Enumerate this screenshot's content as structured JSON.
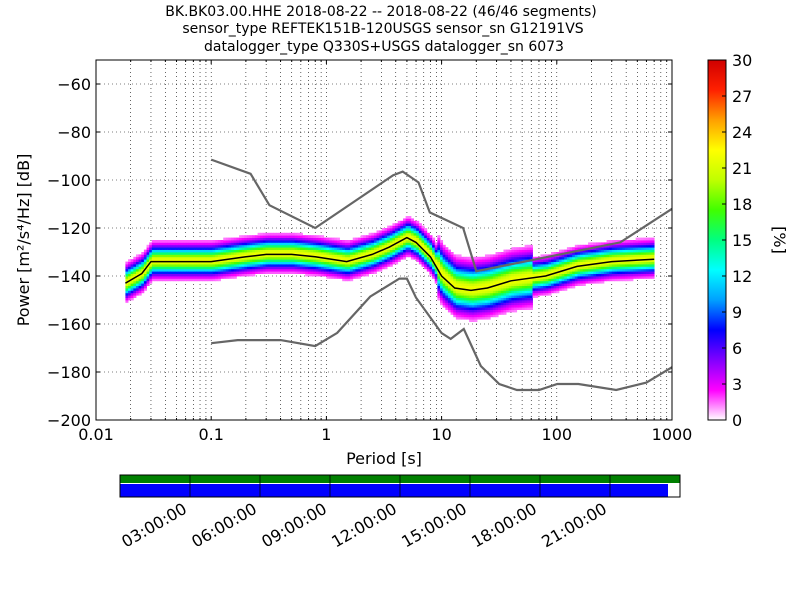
{
  "title_lines": [
    "BK.BK03.00.HHE   2018-08-22 -- 2018-08-22  (46/46 segments)",
    "sensor_type REFTEK151B-120USGS sensor_sn G12191VS",
    "datalogger_type Q330S+USGS datalogger_sn 6073"
  ],
  "chart_data": {
    "type": "heatmap",
    "xlabel": "Period [s]",
    "ylabel": "Power [m²/s⁴/Hz] [dB]",
    "xscale": "log",
    "xlim": [
      0.01,
      1000
    ],
    "ylim": [
      -200,
      -50
    ],
    "xticks": [
      0.01,
      0.1,
      1,
      10,
      100,
      1000
    ],
    "xtick_labels": [
      "0.01",
      "0.1",
      "1",
      "10",
      "100",
      "1000"
    ],
    "yticks": [
      -200,
      -180,
      -160,
      -140,
      -120,
      -100,
      -80,
      -60
    ],
    "ytick_labels": [
      "−200",
      "−180",
      "−160",
      "−140",
      "−120",
      "−100",
      "−80",
      "−60"
    ],
    "grid": true,
    "colorbar": {
      "label": "[%]",
      "range": [
        0,
        30
      ],
      "ticks": [
        0,
        3,
        6,
        9,
        12,
        15,
        18,
        21,
        24,
        27,
        30
      ],
      "tick_labels": [
        "0",
        "3",
        "6",
        "9",
        "12",
        "15",
        "18",
        "21",
        "24",
        "27",
        "30"
      ],
      "colormap": [
        "#ffffff",
        "#ff00ff",
        "#8000ff",
        "#0000ff",
        "#00a0ff",
        "#00ffff",
        "#00ff80",
        "#40ff00",
        "#c0ff00",
        "#ffff00",
        "#ffa000",
        "#ff2000",
        "#d00000"
      ]
    },
    "series": [
      {
        "role": "high-noise-model",
        "color": "#666666",
        "x": [
          0.1,
          0.22,
          0.32,
          0.8,
          3.8,
          4.6,
          6.3,
          7.9,
          15.4,
          20,
          354.8,
          1000
        ],
        "y": [
          -91.5,
          -97.4,
          -110.5,
          -120,
          -98,
          -96.5,
          -101,
          -113.5,
          -120,
          -138,
          -126,
          -112
        ]
      },
      {
        "role": "low-noise-model",
        "color": "#666666",
        "x": [
          0.1,
          0.17,
          0.4,
          0.8,
          1.24,
          2.4,
          4.3,
          5,
          6,
          10,
          12,
          15.6,
          21.9,
          31.6,
          45,
          70,
          101,
          154,
          328,
          600,
          1000
        ],
        "y": [
          -168,
          -166.7,
          -166.7,
          -169.2,
          -163.7,
          -148.6,
          -141.1,
          -141.1,
          -149,
          -163.8,
          -166.2,
          -162.1,
          -177.5,
          -185,
          -187.5,
          -187.5,
          -185,
          -185,
          -187.5,
          -184.4,
          -178
        ]
      },
      {
        "role": "mode",
        "color": "#000000",
        "x": [
          0.018,
          0.025,
          0.03,
          0.05,
          0.1,
          0.2,
          0.3,
          0.5,
          0.8,
          1.5,
          2.5,
          3.5,
          5,
          6,
          8,
          10,
          13,
          18,
          25,
          40,
          80,
          150,
          300,
          700
        ],
        "y": [
          -143,
          -139,
          -134,
          -134,
          -134,
          -132,
          -131,
          -131,
          -132,
          -134,
          -131,
          -128,
          -124,
          -126,
          -132,
          -140,
          -145,
          -146,
          -145,
          -142,
          -140,
          -136,
          -134,
          -133
        ]
      }
    ],
    "time_axis": {
      "tick_labels": [
        "03:00:00",
        "06:00:00",
        "09:00:00",
        "12:00:00",
        "15:00:00",
        "18:00:00",
        "21:00:00"
      ],
      "data_availability_color": "#008000",
      "gaps_color": "#0000ff"
    }
  }
}
